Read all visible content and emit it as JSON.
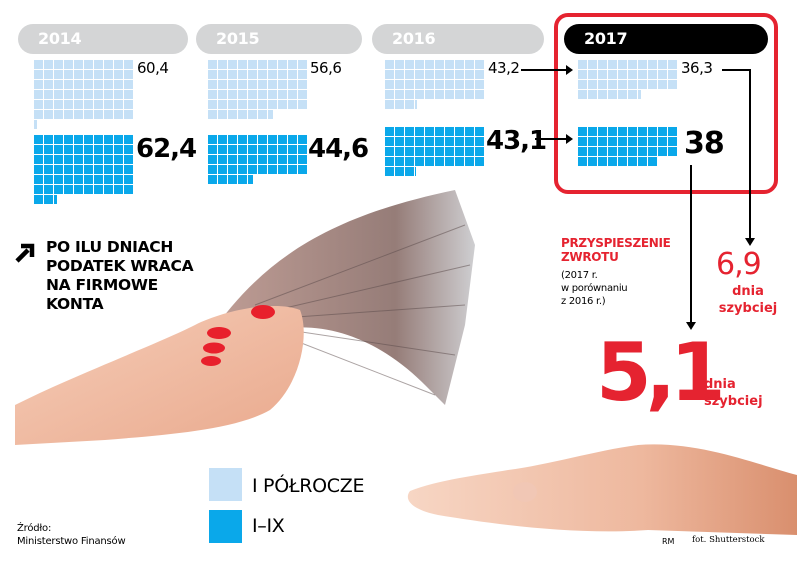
{
  "title": {
    "icon": "arrow-up-right-icon",
    "lines": [
      "PO ILU DNIACH",
      "PODATEK WRACA",
      "NA FIRMOWE",
      "KONTA"
    ]
  },
  "years": [
    {
      "label": "2014",
      "first_half": "60,4",
      "jan_sep": "62,4",
      "highlighted": false
    },
    {
      "label": "2015",
      "first_half": "56,6",
      "jan_sep": "44,6",
      "highlighted": false
    },
    {
      "label": "2016",
      "first_half": "43,2",
      "jan_sep": "43,1",
      "highlighted": false
    },
    {
      "label": "2017",
      "first_half": "36,3",
      "jan_sep": "38",
      "highlighted": true
    }
  ],
  "callout": {
    "title_line1": "PRZYSPIESZENIE",
    "title_line2": "ZWROTU",
    "note_line1": "(2017 r.",
    "note_line2": "w porównaniu",
    "note_line3": "z 2016 r.)",
    "first_half_diff": "6,9",
    "first_half_unit_line1": "dnia",
    "first_half_unit_line2": "szybciej",
    "jan_sep_diff": "5,1",
    "jan_sep_unit_line1": "dnia",
    "jan_sep_unit_line2": "szybciej"
  },
  "legend": [
    {
      "label": "I PÓŁROCZE",
      "color": "#c5e0f6"
    },
    {
      "label": "I–IX",
      "color": "#0aa8ea"
    }
  ],
  "source": {
    "line1": "Źródło:",
    "line2": "Ministerstwo Finansów"
  },
  "credits": {
    "author": "RM",
    "photo": "fot. Shutterstock"
  },
  "colors": {
    "accent_red": "#e52330",
    "light_blue": "#c5e0f6",
    "blue": "#0aa8ea",
    "pill_gray": "#d4d5d6"
  },
  "chart_data": {
    "type": "waffle",
    "title": "Po ilu dniach podatek wraca na firmowe konta",
    "unit": "days (1 square = 1 day)",
    "categories": [
      "2014",
      "2015",
      "2016",
      "2017"
    ],
    "series": [
      {
        "name": "I półrocze",
        "values": [
          60.4,
          56.6,
          43.2,
          36.3
        ],
        "color": "#c5e0f6"
      },
      {
        "name": "I–IX",
        "values": [
          62.4,
          44.6,
          43.1,
          38
        ],
        "color": "#0aa8ea"
      }
    ],
    "annotations": [
      {
        "text": "6,9 dnia szybciej",
        "series": "I półrocze",
        "compare": "2017 vs 2016"
      },
      {
        "text": "5,1 dnia szybciej",
        "series": "I–IX",
        "compare": "2017 vs 2016"
      }
    ],
    "highlight": "2017",
    "grid_columns": 10,
    "legend_position": "bottom-center",
    "source": "Ministerstwo Finansów"
  }
}
